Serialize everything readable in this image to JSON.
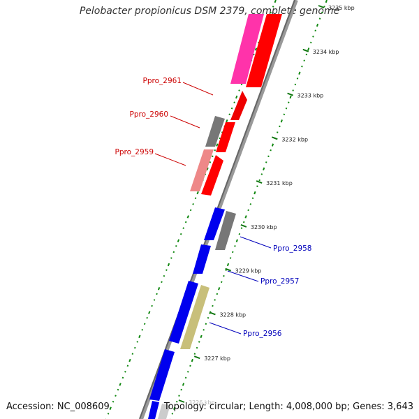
{
  "title": "Pelobacter propionicus DSM 2379, complete genome",
  "accession": "Accession: NC_008609",
  "topology_text": "Topology: circular; Length: 4,008,000 bp; Genes: 3,643",
  "kbp_ticks": [
    "3235 kbp",
    "3234 kbp",
    "3233 kbp",
    "3232 kbp",
    "3231 kbp",
    "3230 kbp",
    "3229 kbp",
    "3228 kbp",
    "3227 kbp",
    "3226 kbp"
  ],
  "genes_left": [
    {
      "name": "Ppro_2961",
      "color": "#cc0000"
    },
    {
      "name": "Ppro_2960",
      "color": "#cc0000"
    },
    {
      "name": "Ppro_2959",
      "color": "#cc0000"
    }
  ],
  "genes_right": [
    {
      "name": "Ppro_2958",
      "color": "#0000bb"
    },
    {
      "name": "Ppro_2957",
      "color": "#0000bb"
    },
    {
      "name": "Ppro_2956",
      "color": "#0000bb"
    }
  ],
  "colors": {
    "forward_strand": "#ff0000",
    "reverse_strand": "#0000ff",
    "unknown": "#777777",
    "pink": "#ff33aa",
    "light_red": "#ee8888",
    "khaki": "#c8bf7a",
    "gc_dots": "#118811",
    "backbone": "#888888"
  }
}
